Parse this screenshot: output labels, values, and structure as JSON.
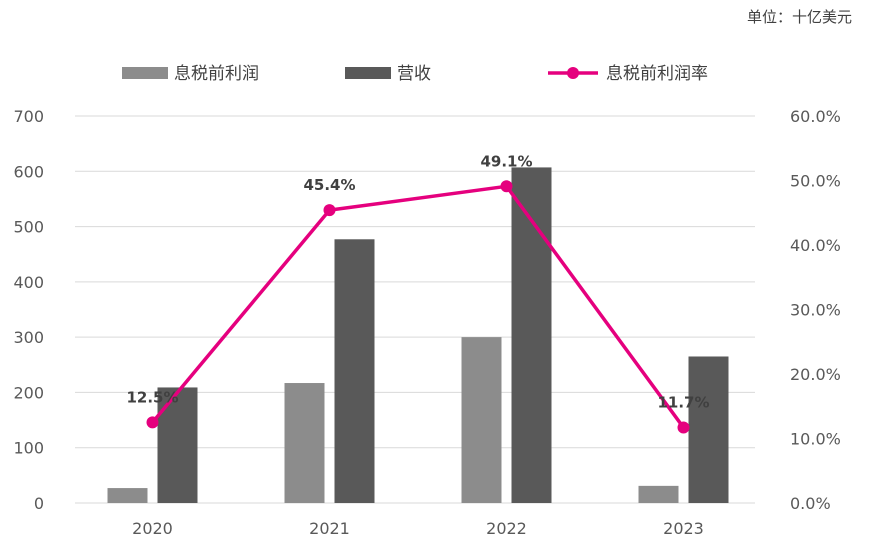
{
  "unit_label": "单位：十亿美元",
  "chart_data": {
    "type": "bar",
    "categories": [
      "2020",
      "2021",
      "2022",
      "2023"
    ],
    "series": [
      {
        "name": "息税前利润",
        "kind": "bar",
        "axis": "left",
        "color": "#8c8c8c",
        "values": [
          27,
          217,
          300,
          31
        ]
      },
      {
        "name": "营收",
        "kind": "bar",
        "axis": "left",
        "color": "#595959",
        "values": [
          209,
          477,
          607,
          265
        ]
      },
      {
        "name": "息税前利润率",
        "kind": "line",
        "axis": "right",
        "color": "#e5007e",
        "values": [
          12.5,
          45.4,
          49.1,
          11.7
        ],
        "labels": [
          "12.5%",
          "45.4%",
          "49.1%",
          "11.7%"
        ]
      }
    ],
    "y_left": {
      "min": 0,
      "max": 700,
      "ticks": [
        "0",
        "100",
        "200",
        "300",
        "400",
        "500",
        "600",
        "700"
      ]
    },
    "y_right": {
      "min": 0,
      "max": 60,
      "ticks": [
        "0.0%",
        "10.0%",
        "20.0%",
        "30.0%",
        "40.0%",
        "50.0%",
        "60.0%"
      ]
    },
    "grid": true,
    "legend_position": "top"
  }
}
